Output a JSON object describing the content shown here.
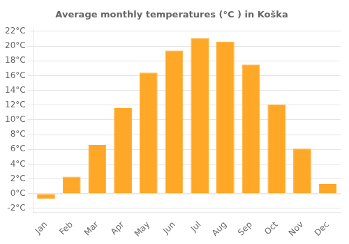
{
  "chart_data": {
    "type": "bar",
    "title": "Average monthly temperatures (°C ) in Koška",
    "categories": [
      "Jan",
      "Feb",
      "Mar",
      "Apr",
      "May",
      "Jun",
      "Jul",
      "Aug",
      "Sep",
      "Oct",
      "Nov",
      "Dec"
    ],
    "values": [
      -0.7,
      2.3,
      6.6,
      11.6,
      16.4,
      19.4,
      21.1,
      20.6,
      17.5,
      12.1,
      6.1,
      1.3
    ],
    "color": "#FFA726",
    "ylim": [
      -2.5,
      22.5
    ],
    "yticks": [
      {
        "value": -2,
        "label": "-2°C"
      },
      {
        "value": 0,
        "label": "0°C"
      },
      {
        "value": 2,
        "label": "2°C"
      },
      {
        "value": 4,
        "label": "4°C"
      },
      {
        "value": 6,
        "label": "6°C"
      },
      {
        "value": 8,
        "label": "8°C"
      },
      {
        "value": 10,
        "label": "10°C"
      },
      {
        "value": 12,
        "label": "12°C"
      },
      {
        "value": 14,
        "label": "14°C"
      },
      {
        "value": 16,
        "label": "16°C"
      },
      {
        "value": 18,
        "label": "18°C"
      },
      {
        "value": 20,
        "label": "20°C"
      },
      {
        "value": 22,
        "label": "22°C"
      }
    ],
    "grid": true
  }
}
